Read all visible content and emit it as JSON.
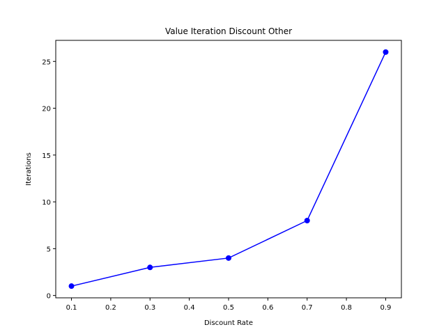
{
  "chart_data": {
    "type": "line",
    "title": "Value Iteration Discount Other",
    "xlabel": "Discount Rate",
    "ylabel": "Iterations",
    "x": [
      0.1,
      0.3,
      0.5,
      0.7,
      0.9
    ],
    "series": [
      {
        "values": [
          1,
          3,
          4,
          8,
          26
        ],
        "color": "#0000ff",
        "marker": "circle"
      }
    ],
    "xlim": [
      0.06,
      0.94
    ],
    "ylim": [
      -0.25,
      27.25
    ],
    "xticks": [
      "0.1",
      "0.2",
      "0.3",
      "0.4",
      "0.5",
      "0.6",
      "0.7",
      "0.8",
      "0.9"
    ],
    "yticks": [
      "0",
      "5",
      "10",
      "15",
      "20",
      "25"
    ],
    "grid": false,
    "legend": "none"
  }
}
